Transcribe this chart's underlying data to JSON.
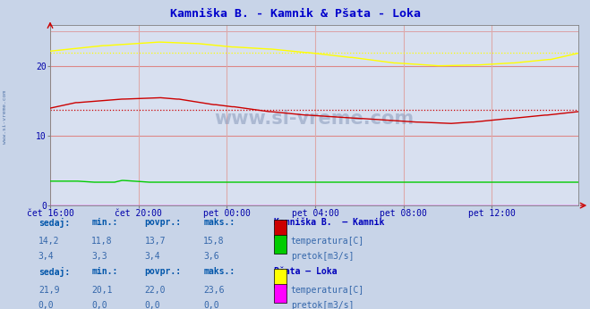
{
  "title": "Kamniška B. - Kamnik & Pšata - Loka",
  "title_color": "#0000cc",
  "bg_color": "#c8d4e8",
  "plot_bg_color": "#d8e0f0",
  "grid_color_h": "#dd8888",
  "grid_color_v": "#ddaaaa",
  "xlabel_color": "#0000aa",
  "watermark": "www.si-vreme.com",
  "xtick_labels": [
    "čet 16:00",
    "čet 20:00",
    "pet 00:00",
    "pet 04:00",
    "pet 08:00",
    "pet 12:00"
  ],
  "xtick_positions": [
    0,
    48,
    96,
    144,
    192,
    240
  ],
  "n_points": 288,
  "ylim": [
    0,
    26
  ],
  "yticks": [
    0,
    10,
    20
  ],
  "kamnik_temp_avg": 13.7,
  "kamnik_temp_sedaj": 14.2,
  "kamnik_temp_min": 11.8,
  "kamnik_temp_max": 15.8,
  "kamnik_flow_sedaj": 3.4,
  "kamnik_flow_min": 3.3,
  "kamnik_flow_avg": 3.4,
  "kamnik_flow_max": 3.6,
  "loka_temp_sedaj": 21.9,
  "loka_temp_min": 20.1,
  "loka_temp_avg": 22.0,
  "loka_temp_max": 23.6,
  "loka_flow_sedaj": 0.0,
  "loka_flow_min": 0.0,
  "loka_flow_avg": 0.0,
  "loka_flow_max": 0.0,
  "color_kamnik_temp": "#cc0000",
  "color_kamnik_flow": "#00cc00",
  "color_loka_temp": "#ffff00",
  "color_loka_flow": "#ff00ff",
  "table_label_color": "#0055aa",
  "table_value_color": "#3366aa",
  "legend_header_color": "#0000bb",
  "side_label_color": "#5577aa"
}
